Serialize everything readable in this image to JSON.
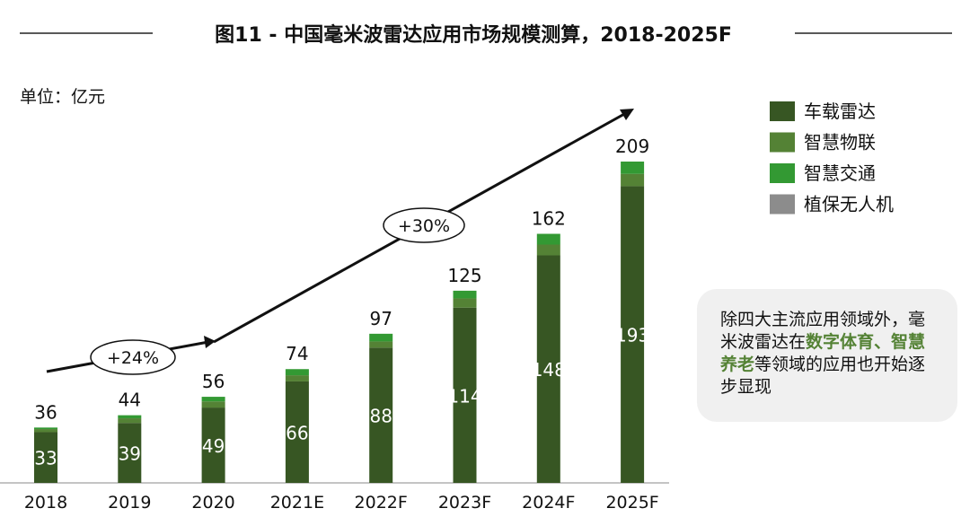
{
  "chart_data": {
    "type": "stacked_bar",
    "title": "图11 - 中国毫米波雷达应用市场规模测算，2018-2025F",
    "unit_label": "单位：亿元",
    "categories": [
      "2018",
      "2019",
      "2020",
      "2021E",
      "2022F",
      "2023F",
      "2024F",
      "2025F"
    ],
    "series": [
      {
        "name": "车载雷达",
        "color": "#375623",
        "values": [
          33,
          39,
          49,
          66,
          88,
          114,
          148,
          193
        ]
      },
      {
        "name": "智慧物联",
        "color": "#548235",
        "values": [
          2,
          3,
          4,
          4,
          4,
          6,
          7,
          8
        ]
      },
      {
        "name": "智慧交通",
        "color": "#339933",
        "values": [
          1,
          2,
          3,
          4,
          5,
          5,
          7,
          8
        ]
      },
      {
        "name": "植保无人机",
        "color": "#8c8c8c",
        "values": [
          0,
          0,
          0,
          0,
          0,
          0,
          0,
          0
        ]
      }
    ],
    "totals": [
      36,
      44,
      56,
      74,
      97,
      125,
      162,
      209
    ],
    "growth_labels": [
      "+24%",
      "+30%"
    ],
    "callout": [
      {
        "text": "除四大主流应用领域外，毫米波雷达在"
      },
      {
        "text": "数字体育、智慧养老",
        "highlight": true
      },
      {
        "text": "等领域的应用也开始逐步显现"
      }
    ],
    "highlight_color": "#548235"
  }
}
